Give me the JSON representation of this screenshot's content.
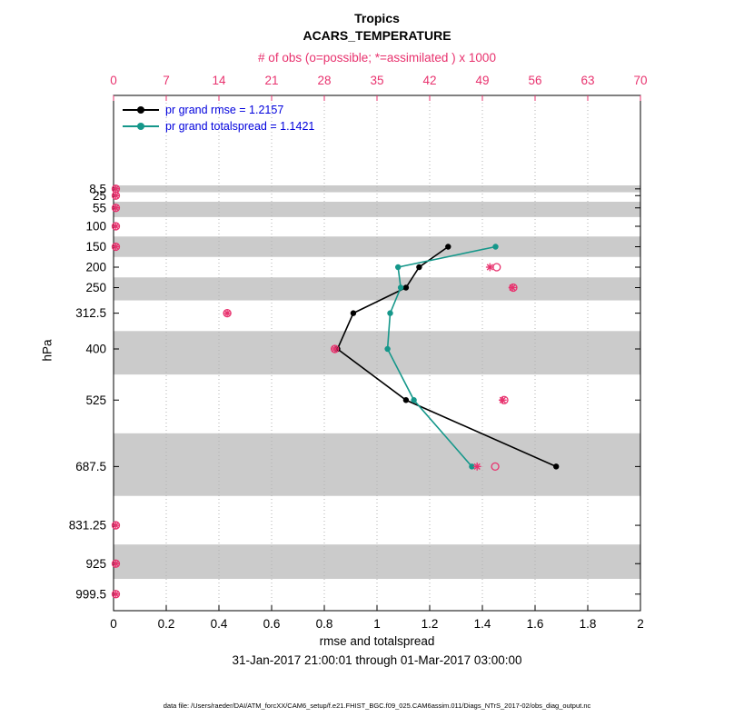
{
  "header": {
    "title_line1": "Tropics",
    "title_line2": "ACARS_TEMPERATURE"
  },
  "legend": {
    "text_color": "#0000dd"
  },
  "footer": {
    "date_range": "31-Jan-2017 21:00:01 through 01-Mar-2017 03:00:00",
    "data_file": "data file: /Users/raeder/DAI/ATM_forcXX/CAM6_setup/f.e21.FHIST_BGC.f09_025.CAM6assim.011/Diags_NTrS_2017-02/obs_diag_output.nc"
  },
  "chart_data": {
    "type": "line",
    "title": "Tropics",
    "subtitle": "ACARS_TEMPERATURE",
    "band_color": "#cbcbcb",
    "grid_color": "#b0b0b0",
    "x_axis_bottom": {
      "label": "rmse and totalspread",
      "min": 0,
      "max": 2,
      "ticks": [
        0,
        0.2,
        0.4,
        0.6,
        0.8,
        1,
        1.2,
        1.4,
        1.6,
        1.8,
        2
      ],
      "tick_labels": [
        "0",
        "0.2",
        "0.4",
        "0.6",
        "0.8",
        "1",
        "1.2",
        "1.4",
        "1.6",
        "1.8",
        "2"
      ]
    },
    "x_axis_top": {
      "label": "# of obs (o=possible; *=assimilated ) x 1000",
      "min": 0,
      "max": 70,
      "ticks": [
        0,
        7,
        14,
        21,
        28,
        35,
        42,
        49,
        56,
        63,
        70
      ],
      "tick_labels": [
        "0",
        "7",
        "14",
        "21",
        "28",
        "35",
        "42",
        "49",
        "56",
        "63",
        "70"
      ]
    },
    "y_axis": {
      "label": "hPa",
      "tick_values": [
        8.5,
        25,
        55,
        100,
        150,
        200,
        250,
        312.5,
        400,
        525,
        687.5,
        831.25,
        925,
        999.5
      ],
      "tick_labels": [
        "8.5",
        "25",
        "55",
        "100",
        "150",
        "200",
        "250",
        "312.5",
        "400",
        "525",
        "687.5",
        "831.25",
        "925",
        "999.5"
      ],
      "ylim_top": -220,
      "ylim_bottom": 1040
    },
    "gray_bands": [
      [
        0,
        16.75
      ],
      [
        40,
        77.5
      ],
      [
        125,
        175
      ],
      [
        225,
        281.25
      ],
      [
        356.25,
        462.5
      ],
      [
        606.25,
        759.375
      ],
      [
        878.125,
        962.25
      ]
    ],
    "series": [
      {
        "name": "pr grand rmse = 1.2157",
        "color": "#000000",
        "levels": [
          150,
          200,
          250,
          312.5,
          400,
          525,
          687.5
        ],
        "values": [
          1.27,
          1.16,
          1.11,
          0.91,
          0.85,
          1.11,
          1.68
        ]
      },
      {
        "name": "pr grand totalspread = 1.1421",
        "color": "#15978a",
        "levels": [
          150,
          200,
          250,
          312.5,
          400,
          525,
          687.5
        ],
        "values": [
          1.45,
          1.08,
          1.09,
          1.05,
          1.04,
          1.14,
          1.36
        ]
      }
    ],
    "obs_counts": {
      "axis": "top",
      "units": "x 1000",
      "color": "#e8326e",
      "levels": [
        8.5,
        25,
        55,
        100,
        150,
        200,
        250,
        312.5,
        400,
        525,
        687.5,
        831.25,
        925,
        999.5
      ],
      "possible": [
        0.3,
        0.3,
        0.3,
        0.3,
        0.3,
        50.9,
        53.1,
        15.1,
        29.4,
        51.9,
        50.7,
        0.3,
        0.3,
        0.3
      ],
      "assimilated": [
        0.3,
        0.3,
        0.3,
        0.3,
        0.3,
        50.0,
        53.0,
        15.1,
        29.4,
        51.7,
        48.3,
        0.3,
        0.3,
        0.3
      ]
    }
  }
}
